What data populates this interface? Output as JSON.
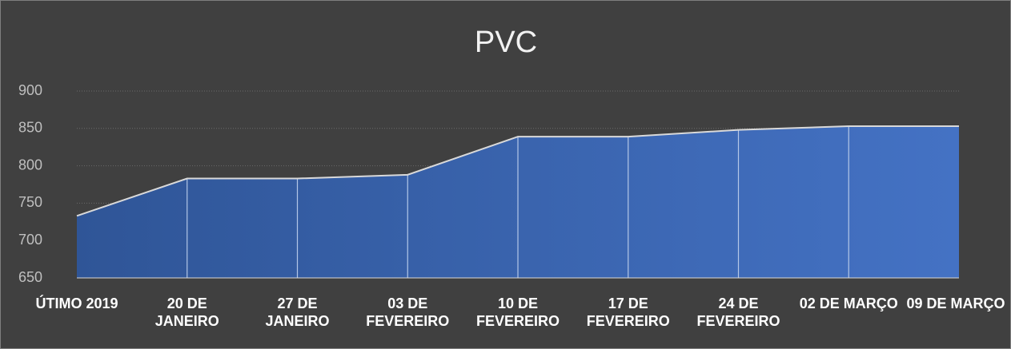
{
  "chart_data": {
    "type": "area",
    "title": "PVC",
    "categories": [
      "ÚTIMO 2019",
      "20 DE JANEIRO",
      "27 DE JANEIRO",
      "03 DE FEVEREIRO",
      "10 DE FEVEREIRO",
      "17 DE FEVEREIRO",
      "24 DE FEVEREIRO",
      "02 DE MARÇO",
      "09 DE MARÇO"
    ],
    "values": [
      733,
      783,
      783,
      788,
      839,
      839,
      848,
      853,
      853
    ],
    "color": "#4472c4",
    "ylim": [
      650,
      900
    ],
    "yticks": [
      650,
      700,
      750,
      800,
      850,
      900
    ],
    "grid": true
  }
}
